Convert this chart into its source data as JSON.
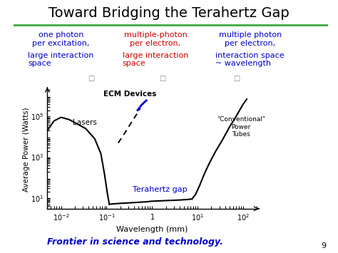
{
  "title": "Toward Bridging the Terahertz Gap",
  "title_fontsize": 14,
  "title_color": "#000000",
  "green_line_color": "#4CAF50",
  "bg_color": "#ffffff",
  "col1_text1": "one photon\nper excitation,",
  "col2_text1": "multiple-photon\nper electron,",
  "col3_text1": "multiple photon\nper electron,",
  "col1_text2": "large interaction\nspace",
  "col2_text2": "large interaction\nspace",
  "col3_text2": "interaction space\n~ wavelength",
  "col1_color": "#0000CC",
  "col2_color": "#CC0000",
  "col3_color": "#0000CC",
  "footer_text": "Frontier in science and technology.",
  "footer_color": "#0000CC",
  "footer_fontsize": 9,
  "xlabel": "Wavelength (mm)",
  "ylabel": "Average Power (Watts)",
  "label_lasers": "Lasers",
  "label_ecm": "ECM Devices",
  "label_thz": "Terahertz gap",
  "label_conv": "\"Conventional\"\nPower\nTubes",
  "ecm_color": "#0000CC",
  "thz_label_color": "#0000CC",
  "page_number": "9",
  "text_fontsize": 8
}
